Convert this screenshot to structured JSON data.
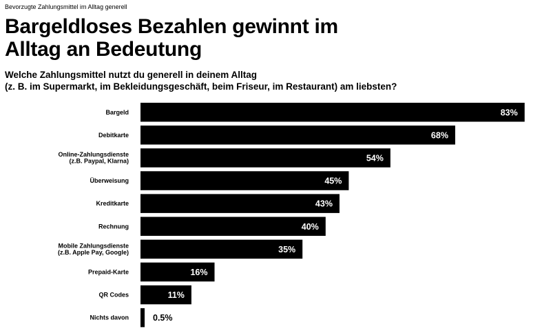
{
  "kicker": "Bevorzugte Zahlungsmittel im Alltag generell",
  "title_line1": "Bargeldloses Bezahlen gewinnt im",
  "title_line2": "Alltag an Bedeutung",
  "subtitle_line1": "Welche Zahlungsmittel nutzt du generell in deinem Alltag",
  "subtitle_line2": "(z. B. im Supermarkt, im Bekleidungsgeschäft, beim Friseur, im Restaurant) am liebsten?",
  "colors": {
    "bar": "#000000",
    "label_inside": "#ffffff",
    "label_outside": "#000000"
  },
  "chart_data": {
    "type": "bar",
    "orientation": "horizontal",
    "categories": [
      [
        "Bargeld"
      ],
      [
        "Debitkarte"
      ],
      [
        "Online-Zahlungsdienste",
        "(z.B. Paypal, Klarna)"
      ],
      [
        "Überweisung"
      ],
      [
        "Kreditkarte"
      ],
      [
        "Rechnung"
      ],
      [
        "Mobile Zahlungsdienste",
        "(z.B. Apple Pay, Google)"
      ],
      [
        "Prepaid-Karte"
      ],
      [
        "QR Codes"
      ],
      [
        "Nichts davon"
      ]
    ],
    "values": [
      83,
      68,
      54,
      45,
      43,
      40,
      35,
      16,
      11,
      0.5
    ],
    "value_labels": [
      "83%",
      "68%",
      "54%",
      "45%",
      "43%",
      "40%",
      "35%",
      "16%",
      "11%",
      "0.5%"
    ],
    "xlim": [
      0,
      100
    ],
    "grid": false,
    "legend": "none"
  }
}
